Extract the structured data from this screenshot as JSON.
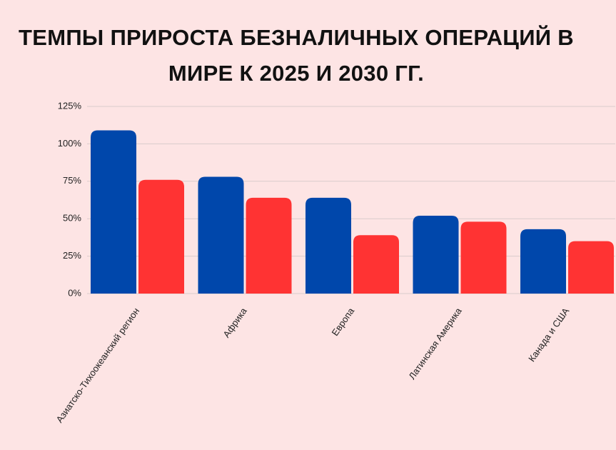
{
  "chart_data": {
    "type": "bar",
    "title": "ТЕМПЫ ПРИРОСТА БЕЗНАЛИЧНЫХ ОПЕРАЦИЙ В МИРЕ К 2025 И 2030 ГГ.",
    "categories": [
      "Азиатско-Тихоокеанский регион",
      "Африка",
      "Европа",
      "Латинская Америка",
      "Канада и США"
    ],
    "series": [
      {
        "color": "#0047ab",
        "values": [
          109,
          78,
          64,
          52,
          43
        ]
      },
      {
        "color": "#ff3333",
        "values": [
          76,
          64,
          39,
          48,
          35
        ]
      }
    ],
    "ylim": [
      0,
      125
    ],
    "yticks": [
      {
        "value": 0,
        "label": "0%"
      },
      {
        "value": 25,
        "label": "25%"
      },
      {
        "value": 50,
        "label": "50%"
      },
      {
        "value": 75,
        "label": "75%"
      },
      {
        "value": 100,
        "label": "100%"
      },
      {
        "value": 125,
        "label": "125%"
      }
    ],
    "grid": true
  }
}
